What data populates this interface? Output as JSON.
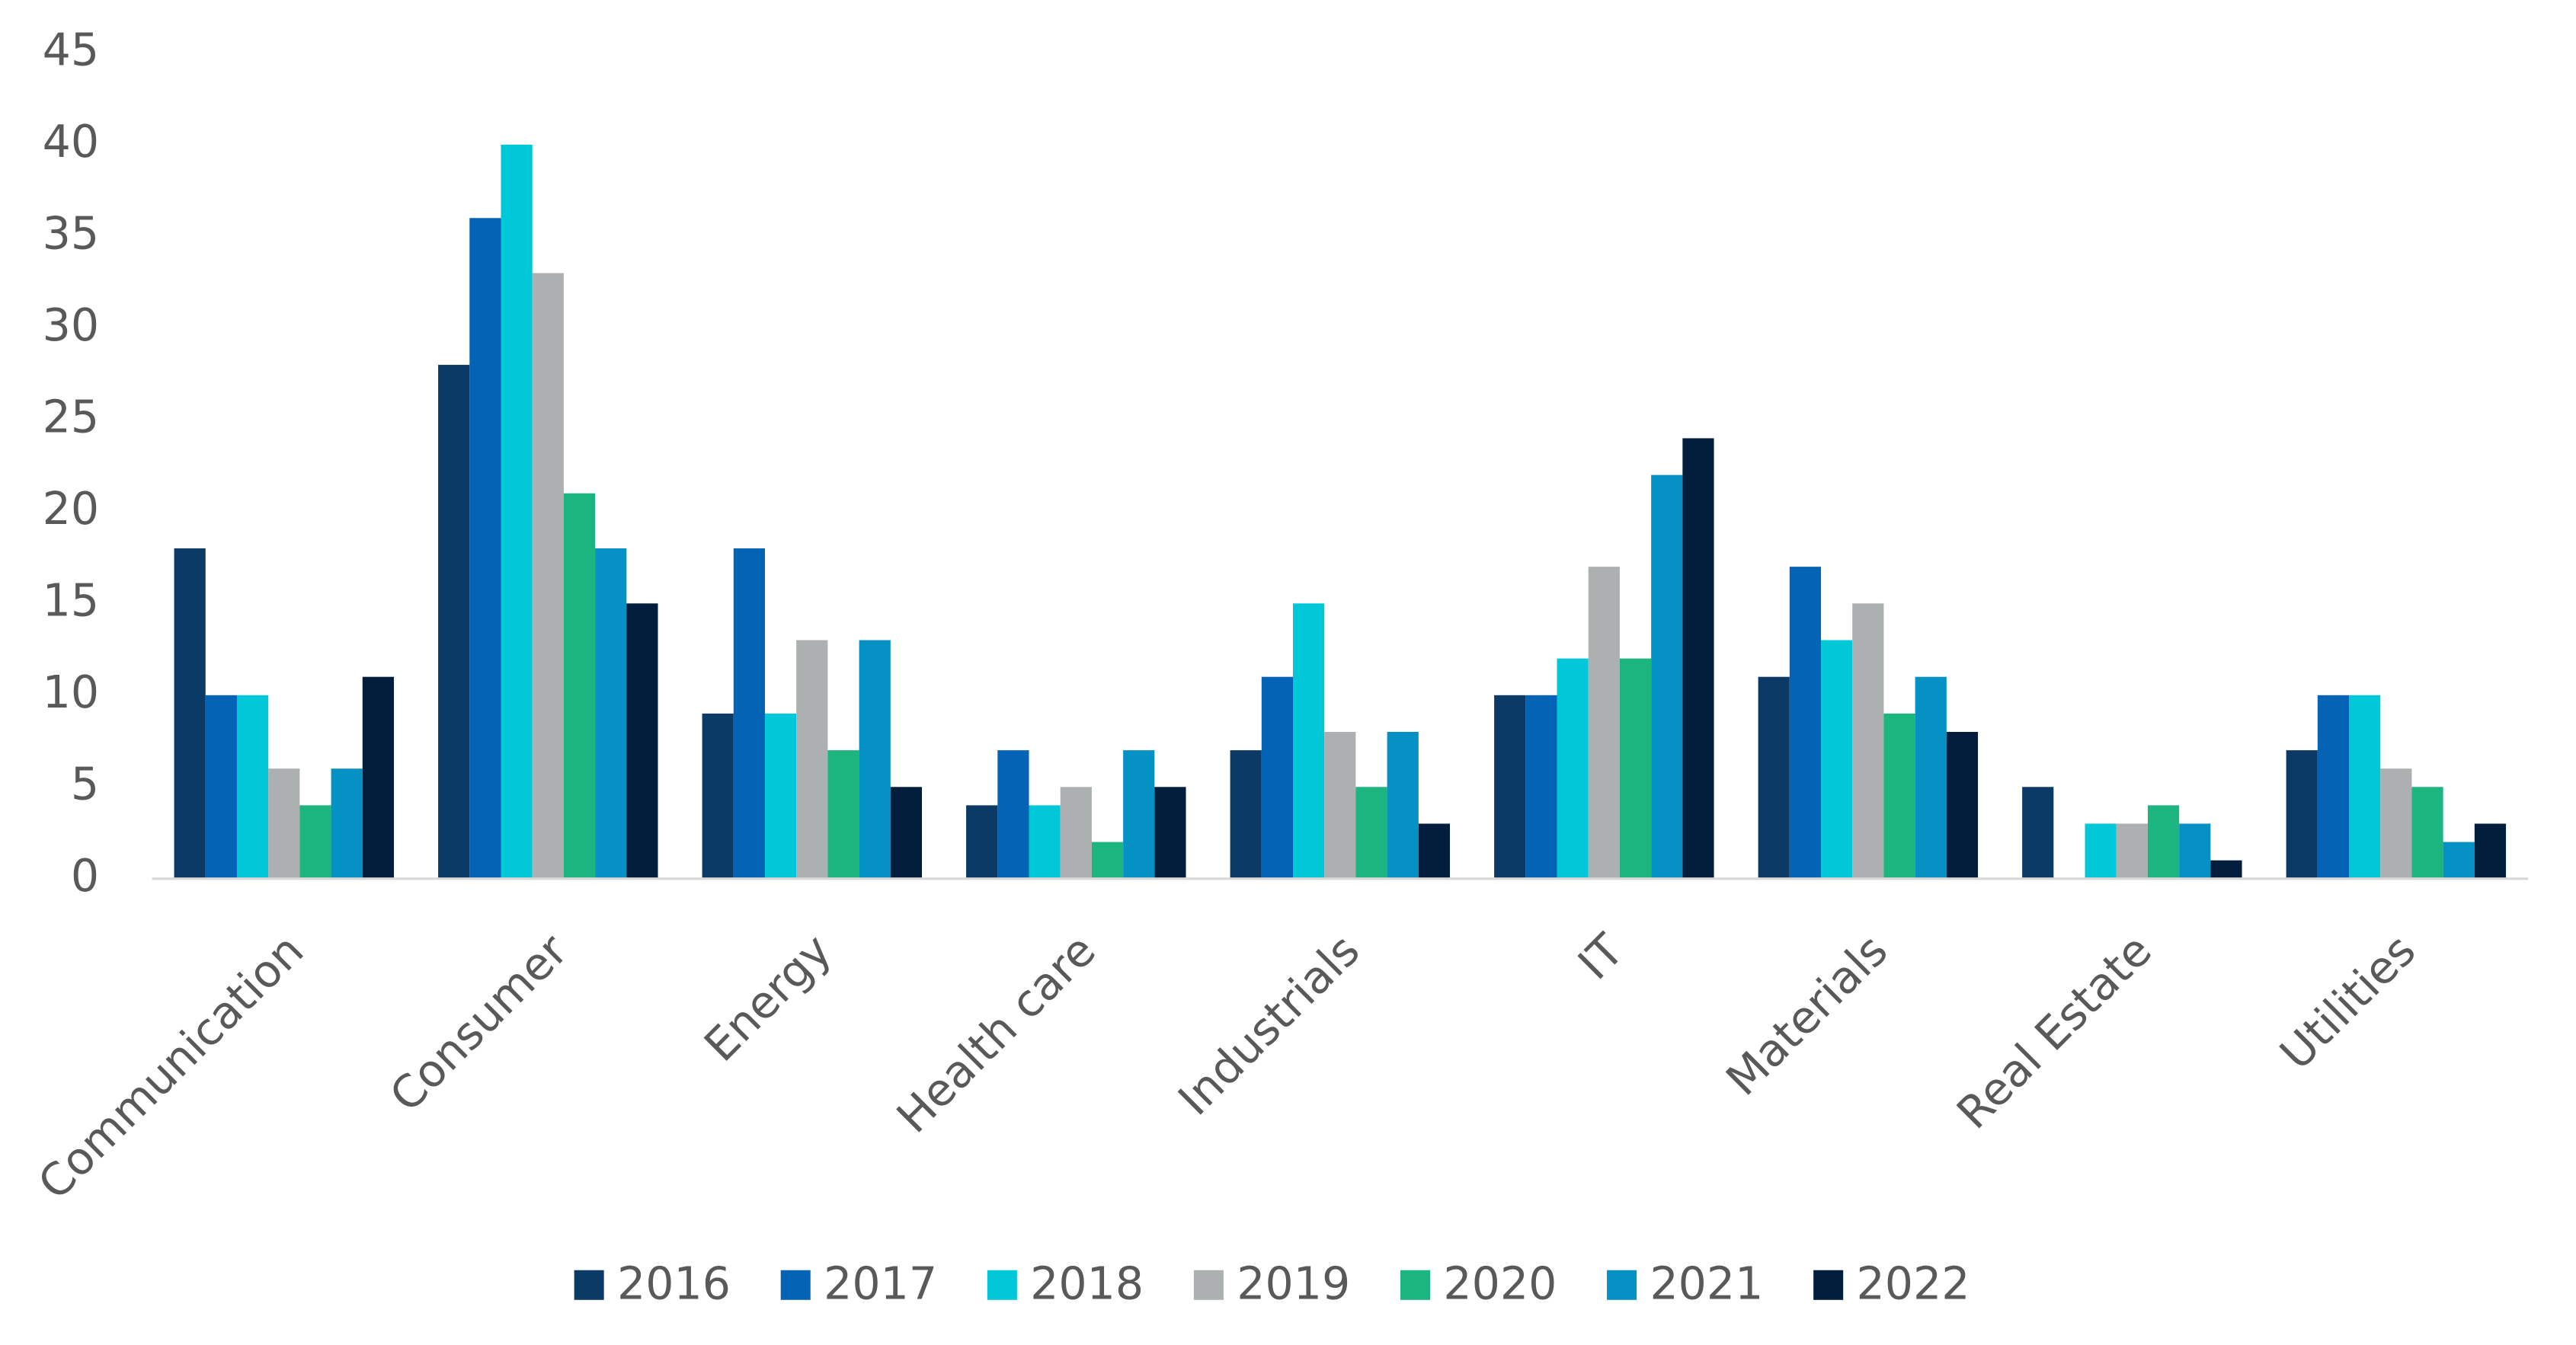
{
  "chart_data": {
    "type": "bar",
    "categories": [
      "Communication",
      "Consumer",
      "Energy",
      "Health care",
      "Industrials",
      "IT",
      "Materials",
      "Real Estate",
      "Utilities"
    ],
    "series": [
      {
        "name": "2016",
        "color": "#0b3a66",
        "values": [
          18,
          28,
          9,
          4,
          7,
          10,
          11,
          5,
          7
        ]
      },
      {
        "name": "2017",
        "color": "#0563b5",
        "values": [
          10,
          36,
          18,
          7,
          11,
          10,
          17,
          0,
          10
        ]
      },
      {
        "name": "2018",
        "color": "#00c8d8",
        "values": [
          10,
          40,
          9,
          4,
          15,
          12,
          13,
          3,
          10
        ]
      },
      {
        "name": "2019",
        "color": "#adb0b0",
        "values": [
          6,
          33,
          13,
          5,
          8,
          17,
          15,
          3,
          6
        ]
      },
      {
        "name": "2020",
        "color": "#1db57f",
        "values": [
          4,
          21,
          7,
          2,
          5,
          12,
          9,
          4,
          5
        ]
      },
      {
        "name": "2021",
        "color": "#0591c4",
        "values": [
          6,
          18,
          13,
          7,
          8,
          22,
          11,
          3,
          2
        ]
      },
      {
        "name": "2022",
        "color": "#021e3c",
        "values": [
          11,
          15,
          5,
          5,
          3,
          24,
          8,
          1,
          3
        ]
      }
    ],
    "ylim": [
      0,
      45
    ],
    "yticks": [
      0,
      5,
      10,
      15,
      20,
      25,
      30,
      35,
      40,
      45
    ],
    "grid": false,
    "legend": "bottom"
  }
}
